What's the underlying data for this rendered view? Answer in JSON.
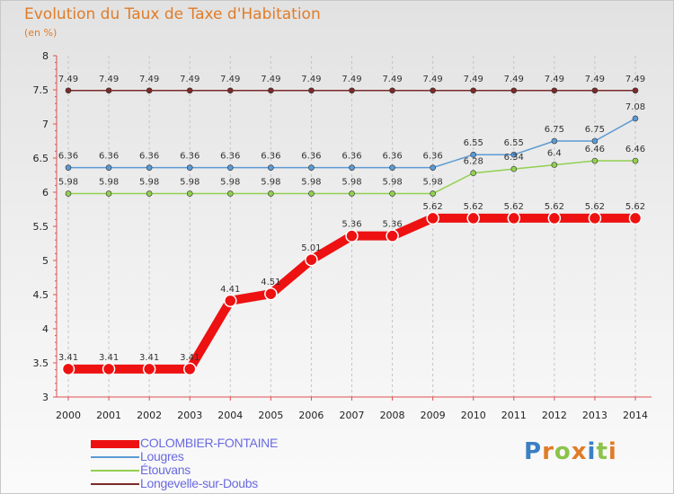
{
  "header": {
    "title": "Evolution du Taux de Taxe d'Habitation",
    "subtitle": "(en %)"
  },
  "chart_data": {
    "type": "line",
    "title": "Evolution du Taux de Taxe d'Habitation",
    "ylabel": "(en %)",
    "xlabel": "",
    "ylim": [
      3,
      8
    ],
    "yticks": [
      "3",
      "3.5",
      "4",
      "4.5",
      "5",
      "5.5",
      "6",
      "6.5",
      "7",
      "7.5",
      "8"
    ],
    "grid": "vertical dashed",
    "x": [
      "2000",
      "2001",
      "2002",
      "2003",
      "2004",
      "2005",
      "2006",
      "2007",
      "2008",
      "2009",
      "2010",
      "2011",
      "2012",
      "2013",
      "2014"
    ],
    "series": [
      {
        "name": "Longevelle-sur-Doubs",
        "color": "#7a2a2a",
        "values": [
          7.49,
          7.49,
          7.49,
          7.49,
          7.49,
          7.49,
          7.49,
          7.49,
          7.49,
          7.49,
          7.49,
          7.49,
          7.49,
          7.49,
          7.49
        ],
        "labels": [
          "7.49",
          "7.49",
          "7.49",
          "7.49",
          "7.49",
          "7.49",
          "7.49",
          "7.49",
          "7.49",
          "7.49",
          "7.49",
          "7.49",
          "7.49",
          "7.49",
          "7.49"
        ]
      },
      {
        "name": "Lougres",
        "color": "#5b9bd5",
        "values": [
          6.36,
          6.36,
          6.36,
          6.36,
          6.36,
          6.36,
          6.36,
          6.36,
          6.36,
          6.36,
          6.55,
          6.55,
          6.75,
          6.75,
          7.08
        ],
        "labels": [
          "6.36",
          "6.36",
          "6.36",
          "6.36",
          "6.36",
          "6.36",
          "6.36",
          "6.36",
          "6.36",
          "6.36",
          "6.55",
          "6.55",
          "6.75",
          "6.75",
          "7.08"
        ]
      },
      {
        "name": "Étouvans",
        "color": "#92d050",
        "values": [
          5.98,
          5.98,
          5.98,
          5.98,
          5.98,
          5.98,
          5.98,
          5.98,
          5.98,
          5.98,
          6.28,
          6.34,
          6.4,
          6.46,
          6.46
        ],
        "labels": [
          "5.98",
          "5.98",
          "5.98",
          "5.98",
          "5.98",
          "5.98",
          "5.98",
          "5.98",
          "5.98",
          "5.98",
          "6.28",
          "6.34",
          "6.4",
          "6.46",
          "6.46"
        ]
      },
      {
        "name": "COLOMBIER-FONTAINE",
        "color": "#ee1111",
        "values": [
          3.41,
          3.41,
          3.41,
          3.41,
          4.41,
          4.51,
          5.01,
          5.36,
          5.36,
          5.62,
          5.62,
          5.62,
          5.62,
          5.62,
          5.62
        ],
        "labels": [
          "3.41",
          "3.41",
          "3.41",
          "3.41",
          "4.41",
          "4.51",
          "5.01",
          "5.36",
          "5.36",
          "5.62",
          "5.62",
          "5.62",
          "5.62",
          "5.62",
          "5.62"
        ]
      }
    ]
  },
  "legend": {
    "items": [
      {
        "label": "COLOMBIER-FONTAINE",
        "color": "#ee1111",
        "text_color": "#6a6ae0"
      },
      {
        "label": "Lougres",
        "color": "#5b9bd5",
        "text_color": "#6a6ae0"
      },
      {
        "label": "Étouvans",
        "color": "#92d050",
        "text_color": "#6a6ae0"
      },
      {
        "label": "Longevelle-sur-Doubs",
        "color": "#7a2a2a",
        "text_color": "#6a6ae0"
      }
    ]
  },
  "brand": {
    "text": "Proxiti",
    "letter_colors": [
      "#3a7fc4",
      "#e07c28",
      "#8bc34a",
      "#e07c28",
      "#3a7fc4",
      "#8bc34a",
      "#e07c28"
    ]
  }
}
